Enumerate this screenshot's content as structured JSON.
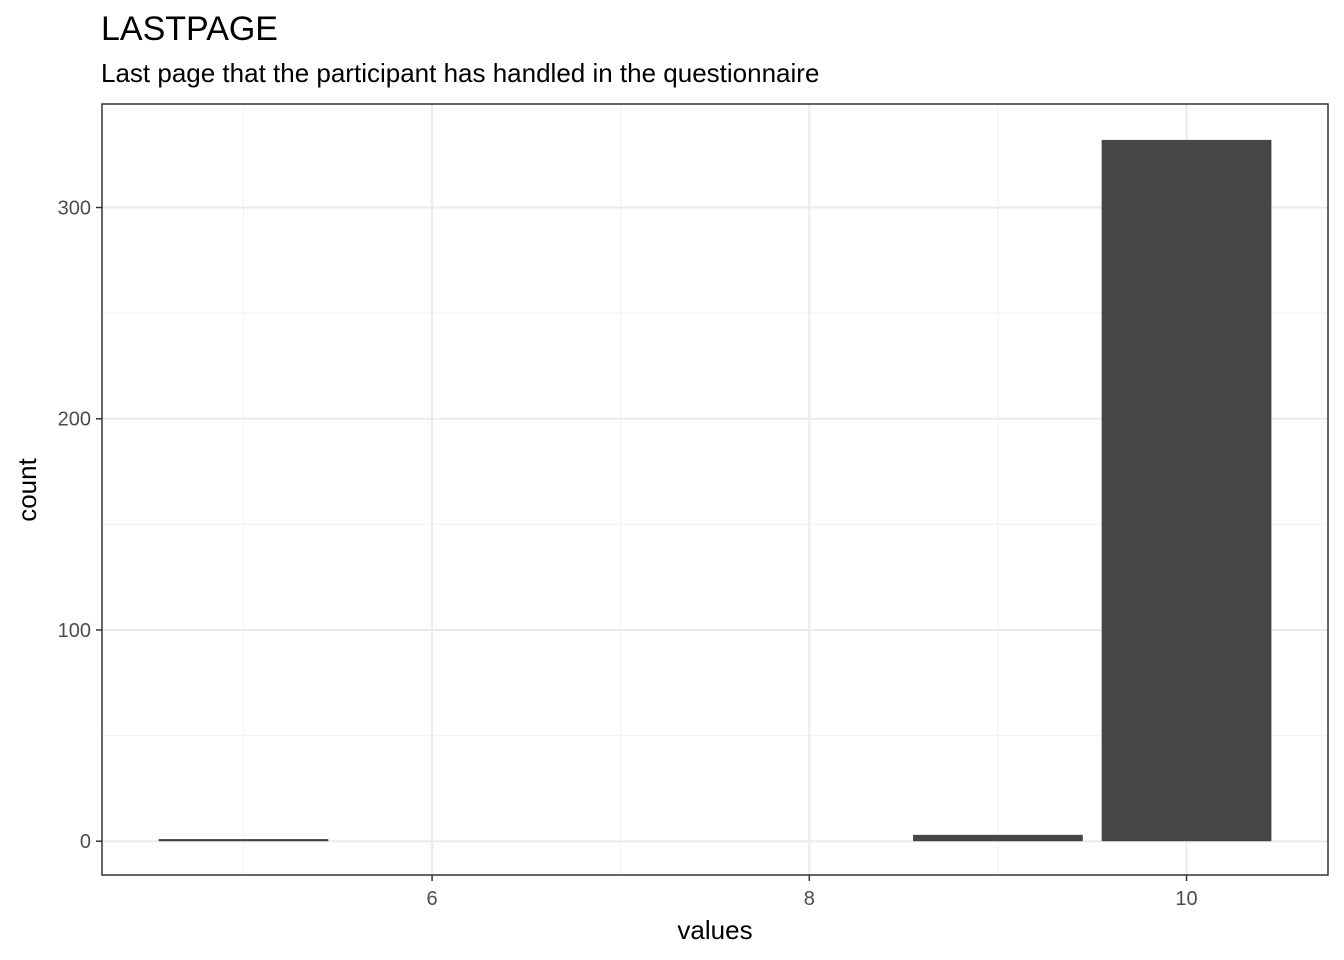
{
  "chart_data": {
    "type": "bar",
    "title": "LASTPAGE",
    "subtitle": "Last page that the participant has handled in the questionnaire",
    "xlabel": "values",
    "ylabel": "count",
    "x_ticks": [
      6,
      8,
      10
    ],
    "y_ticks": [
      0,
      100,
      200,
      300
    ],
    "x_minor": [
      5,
      7,
      9
    ],
    "y_minor": [
      50,
      150,
      250
    ],
    "xlim": [
      4.25,
      10.75
    ],
    "ylim": [
      -16,
      349
    ],
    "bin_width": 0.9,
    "bars": [
      {
        "x": 5,
        "count": 1
      },
      {
        "x": 9,
        "count": 3
      },
      {
        "x": 10,
        "count": 332
      }
    ],
    "grid": true,
    "bar_color": "#464646",
    "grid_major_color": "#ebebeb",
    "grid_minor_color": "#f2f2f2",
    "panel_border_color": "#333333"
  }
}
